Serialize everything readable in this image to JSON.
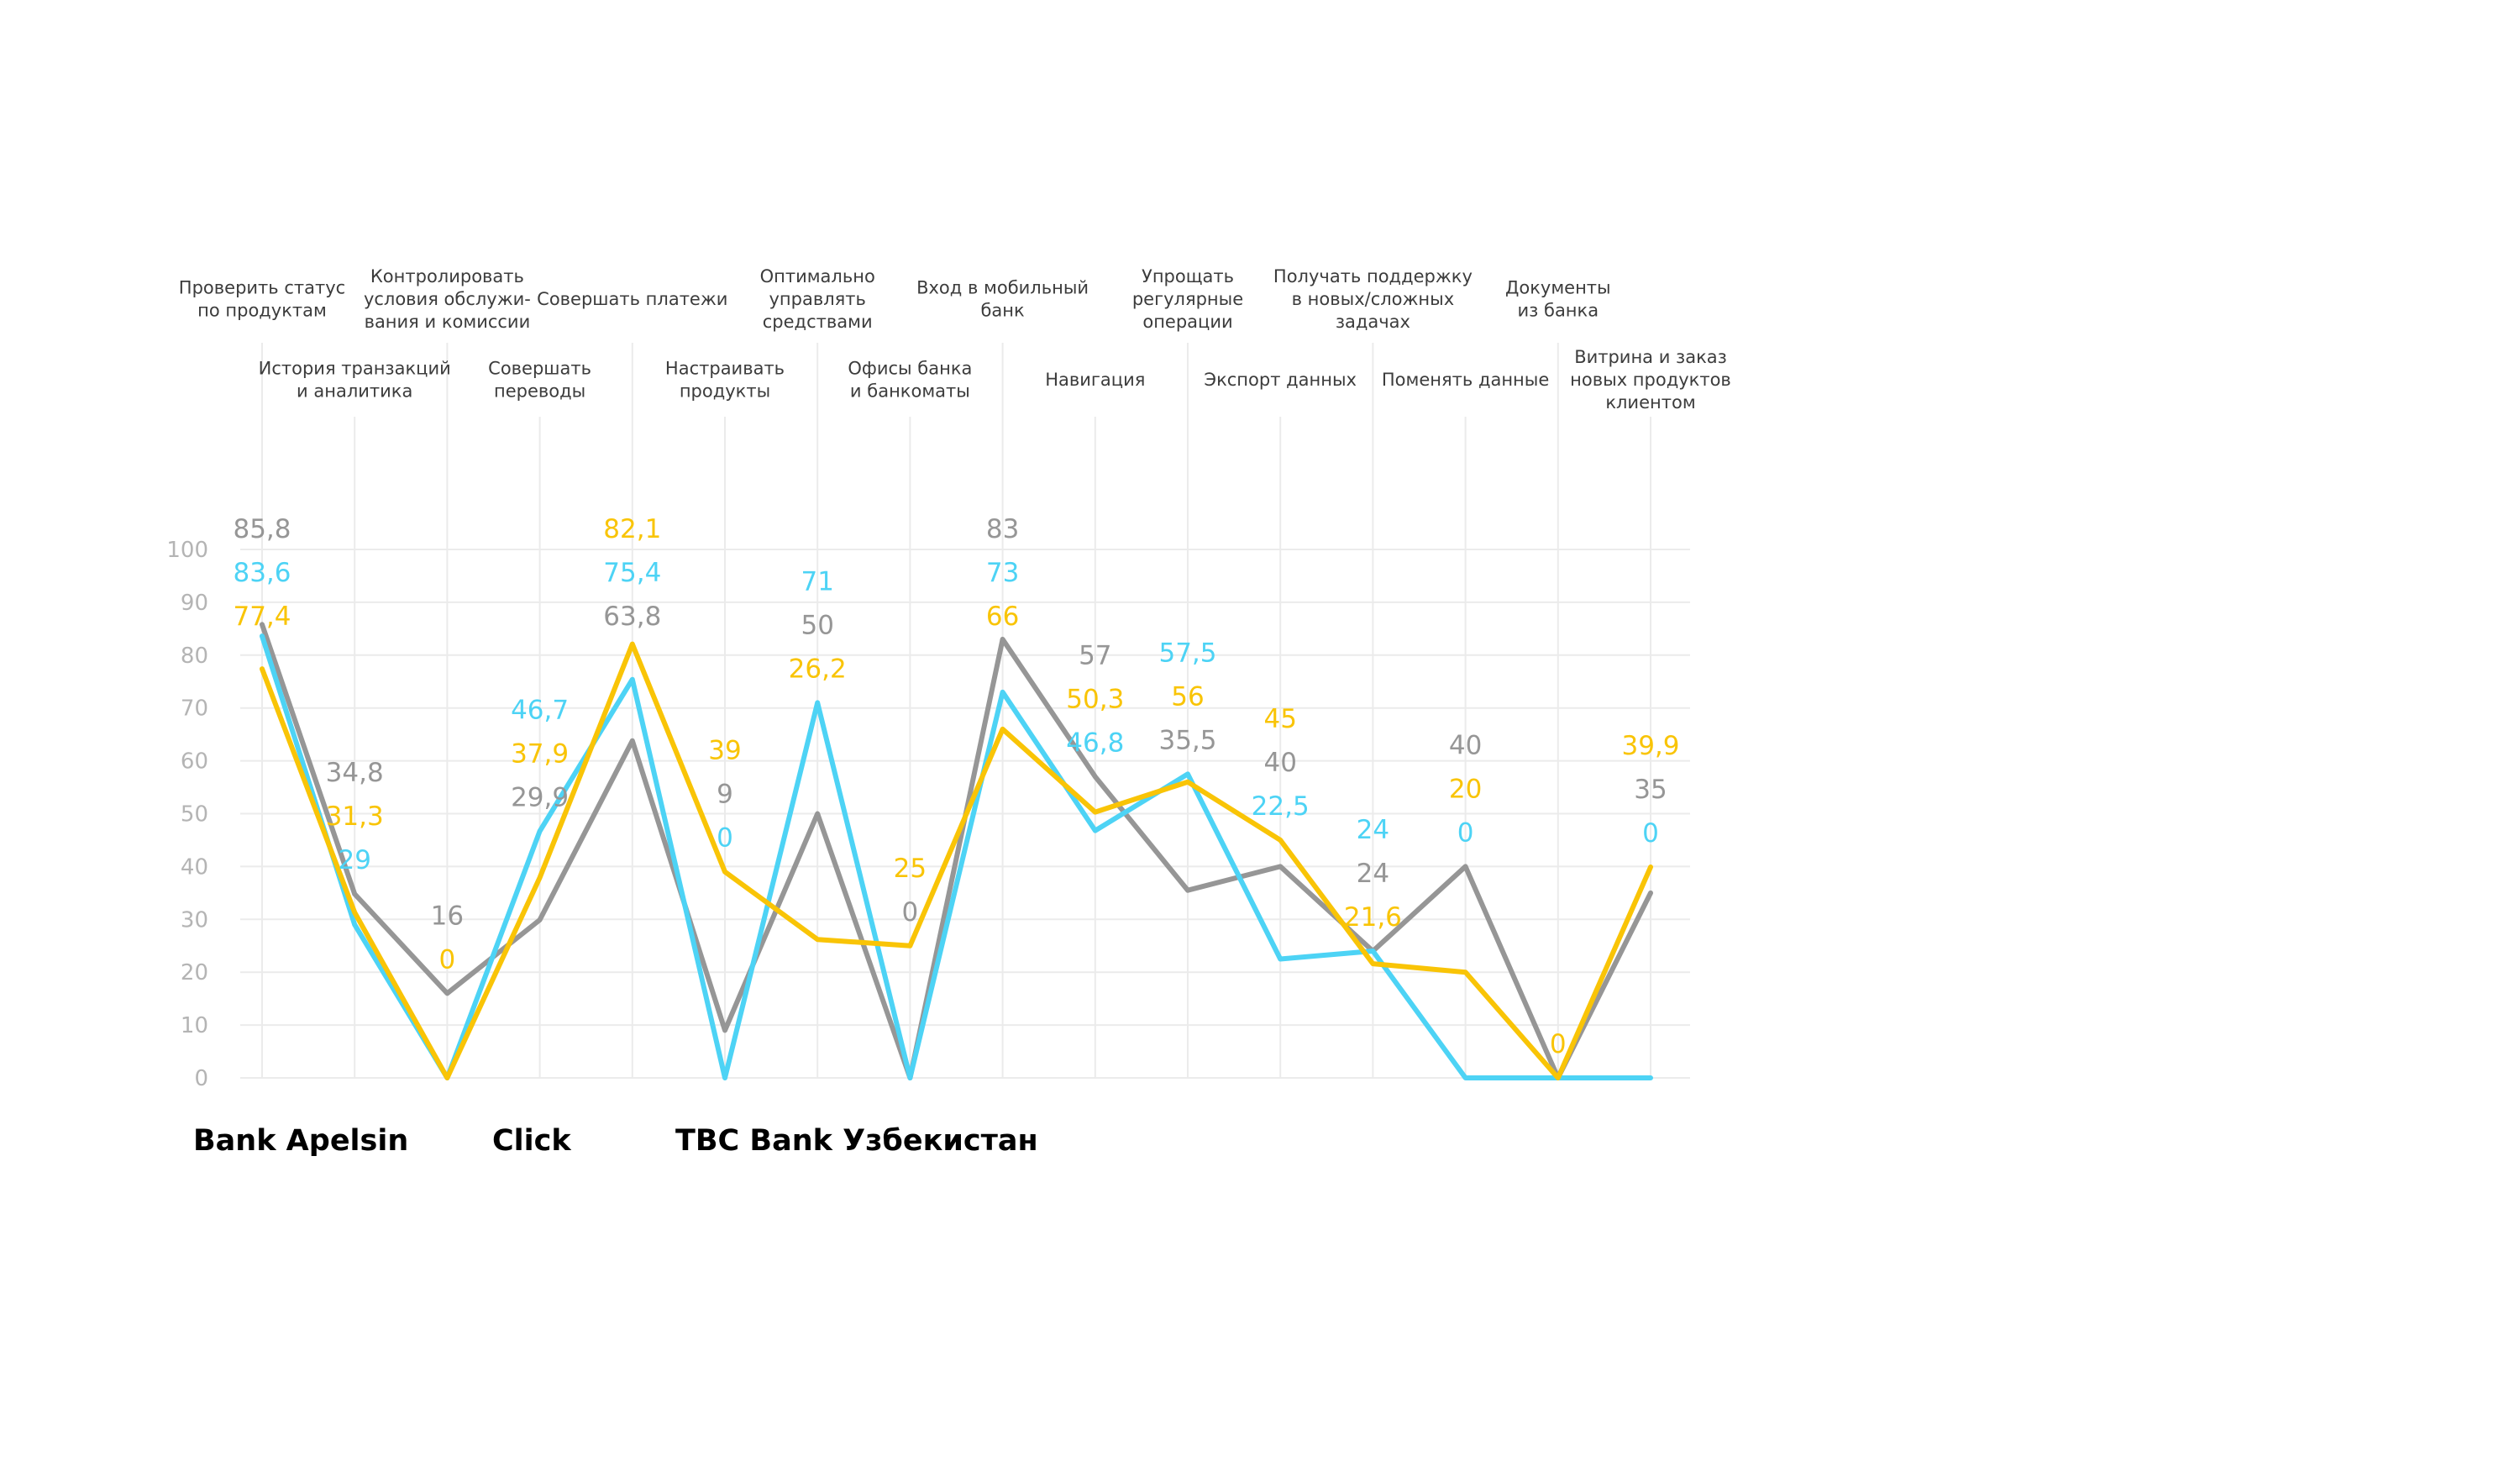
{
  "chart_data": {
    "type": "line",
    "title": "",
    "xlabel": "",
    "ylabel": "",
    "ylim": [
      0,
      100
    ],
    "yticks": [
      "0",
      "10",
      "20",
      "30",
      "40",
      "50",
      "60",
      "70",
      "80",
      "90",
      "100"
    ],
    "grid": true,
    "legend_position": "bottom-left",
    "categories": [
      [
        "Проверить статус",
        "по продуктам"
      ],
      [
        "История транзакций",
        "и аналитика"
      ],
      [
        "Контролировать",
        "условия обслужи-",
        "вания и комиссии"
      ],
      [
        "Совершать",
        "переводы"
      ],
      [
        "Совершать платежи"
      ],
      [
        "Настраивать",
        "продукты"
      ],
      [
        "Оптимально",
        "управлять",
        "средствами"
      ],
      [
        "Офисы банка",
        "и банкоматы"
      ],
      [
        "Вход в мобильный",
        "банк"
      ],
      [
        "Навигация"
      ],
      [
        "Упрощать",
        "регулярные",
        "операции"
      ],
      [
        "Экспорт данных"
      ],
      [
        "Получать поддержку",
        "в новых/сложных",
        "задачах"
      ],
      [
        "Поменять данные"
      ],
      [
        "Документы",
        "из банка"
      ],
      [
        "Витрина и заказ",
        "новых продуктов",
        "клиентом"
      ]
    ],
    "series": [
      {
        "name": "Bank Apelsin",
        "color": "#F9C406",
        "values": [
          77.4,
          31.3,
          0,
          37.9,
          82.1,
          39,
          26.2,
          25,
          66,
          50.3,
          56,
          45,
          21.6,
          20,
          0,
          39.9
        ],
        "labels": [
          "77,4",
          "31,3",
          "0",
          "37,9",
          "82,1",
          "39",
          "26,2",
          "25",
          "66",
          "50,3",
          "56",
          "45",
          "21,6",
          "20",
          "0",
          "39,9"
        ]
      },
      {
        "name": "Click",
        "color": "#4DD3F5",
        "values": [
          83.6,
          29,
          0,
          46.7,
          75.4,
          0,
          71,
          0,
          73,
          46.8,
          57.5,
          22.5,
          24,
          0,
          0,
          0
        ],
        "labels": [
          "83,6",
          "29",
          "",
          "46,7",
          "75,4",
          "0",
          "71",
          "",
          "73",
          "46,8",
          "57,5",
          "22,5",
          "24",
          "0",
          "",
          "0"
        ]
      },
      {
        "name": "TBC Bank Узбекистан",
        "color": "#969696",
        "values": [
          85.8,
          34.8,
          16,
          29.9,
          63.8,
          9,
          50,
          0,
          83,
          57,
          35.5,
          40,
          24,
          40,
          0,
          35
        ],
        "labels": [
          "85,8",
          "34,8",
          "16",
          "29,9",
          "63,8",
          "9",
          "50",
          "0",
          "83",
          "57",
          "35,5",
          "40",
          "24",
          "40",
          "",
          "35"
        ]
      }
    ]
  }
}
